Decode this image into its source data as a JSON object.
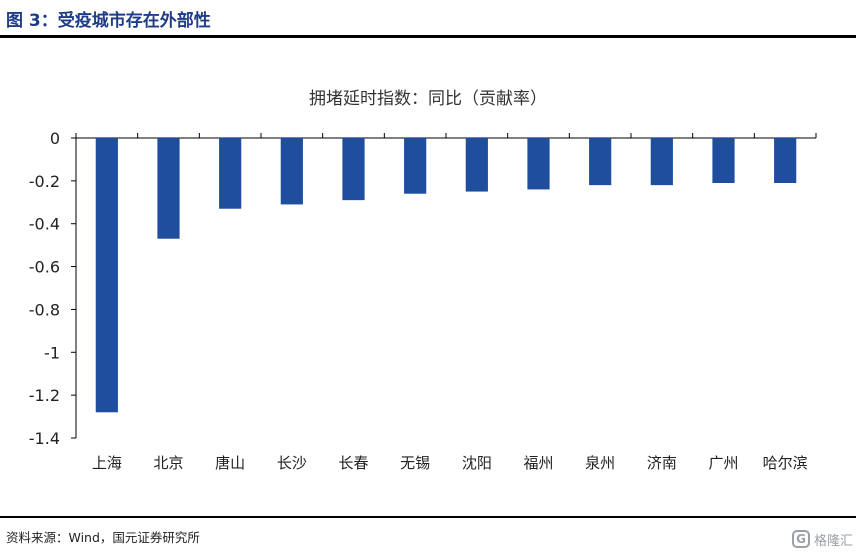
{
  "header": {
    "figure_title": "图 3：受疫城市存在外部性"
  },
  "footer": {
    "source": "资料来源：Wind，国元证券研究所",
    "watermark_glyph": "G",
    "watermark_text": "格隆汇"
  },
  "colors": {
    "bar": "#1F4E9E",
    "title_accent": "#1F3C88",
    "axis": "#000000"
  },
  "chart_data": {
    "type": "bar",
    "title": "拥堵延时指数：同比（贡献率）",
    "xlabel": "",
    "ylabel": "",
    "categories": [
      "上海",
      "北京",
      "唐山",
      "长沙",
      "长春",
      "无锡",
      "沈阳",
      "福州",
      "泉州",
      "济南",
      "广州",
      "哈尔滨"
    ],
    "values": [
      -1.28,
      -0.47,
      -0.33,
      -0.31,
      -0.29,
      -0.26,
      -0.25,
      -0.24,
      -0.22,
      -0.22,
      -0.21,
      -0.21
    ],
    "ylim": [
      -1.4,
      0
    ],
    "yticks": [
      0,
      -0.2,
      -0.4,
      -0.6,
      -0.8,
      -1,
      -1.2,
      -1.4
    ],
    "ytick_labels": [
      "0",
      "-0.2",
      "-0.4",
      "-0.6",
      "-0.8",
      "-1",
      "-1.2",
      "-1.4"
    ],
    "grid": false,
    "legend": "none"
  }
}
